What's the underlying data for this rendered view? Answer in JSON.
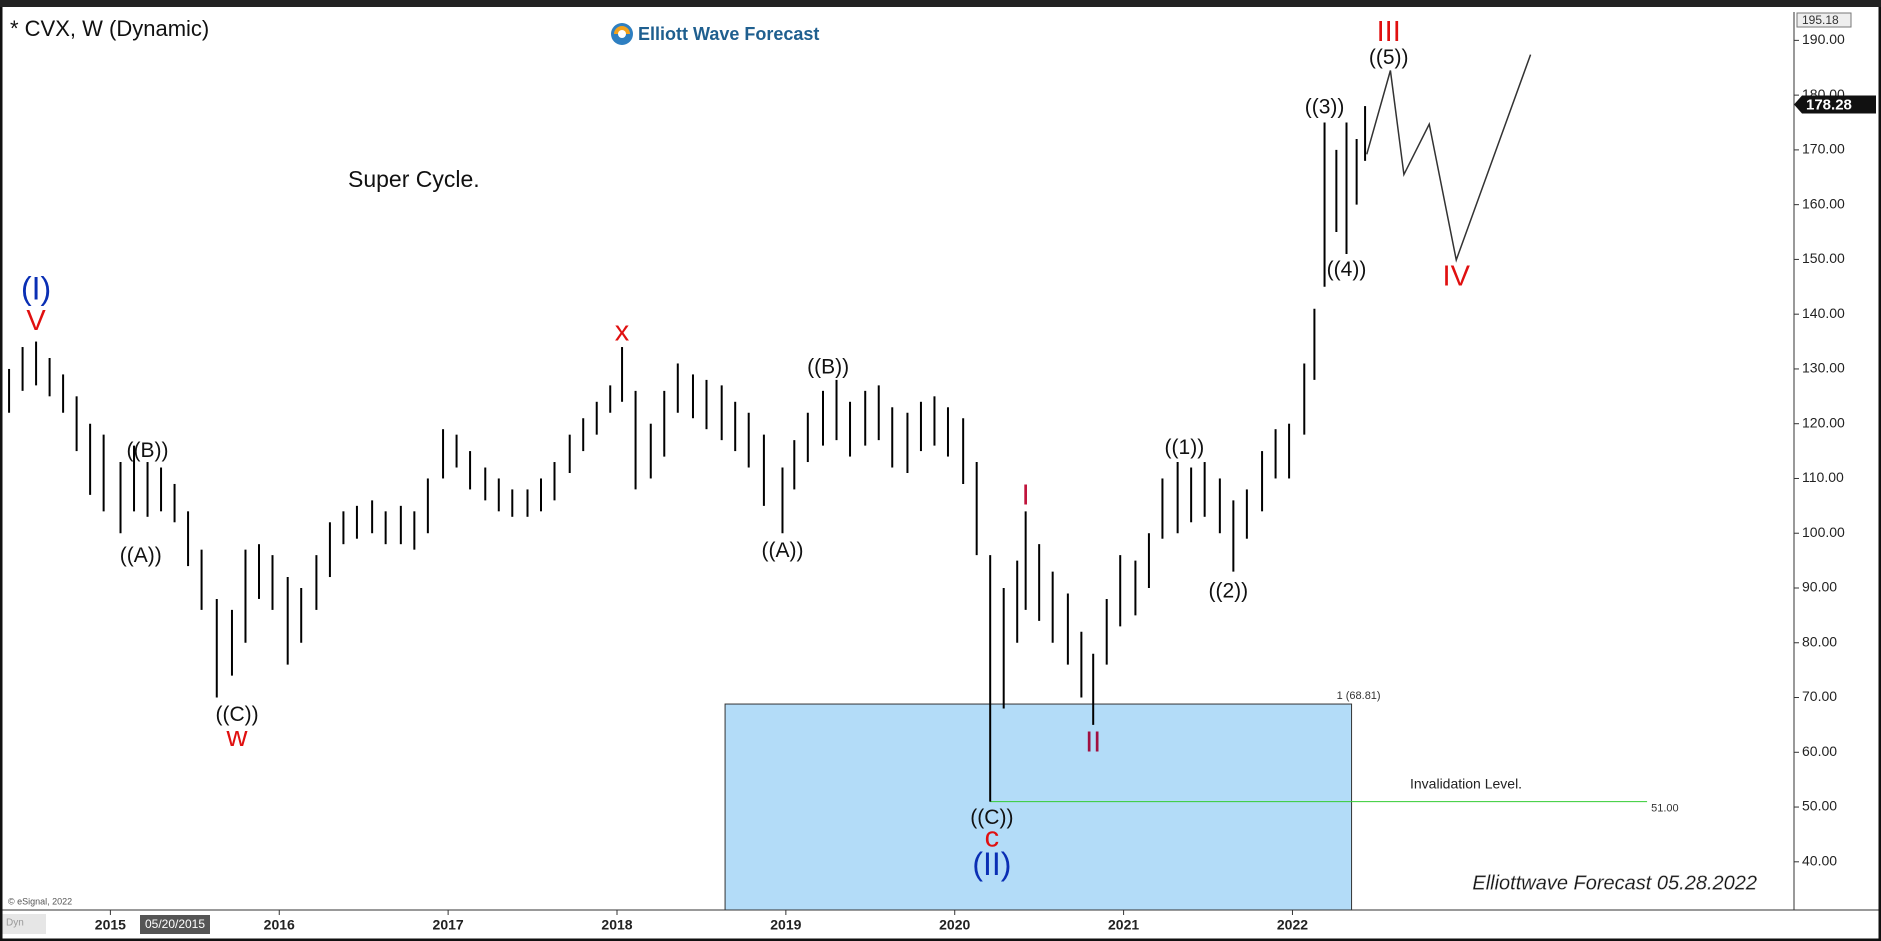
{
  "chart_data": {
    "type": "hilo",
    "title": "* CVX, W (Dynamic)",
    "logo": "Elliott Wave Forecast",
    "subtitle": "Super Cycle.",
    "footer": "Elliottwave Forecast 05.28.2022",
    "copyright": "© eSignal, 2022",
    "mode": "Dyn",
    "cursor_date": "05/20/2015",
    "bar_color": "#000000",
    "xlim": [
      2014.37,
      2024.97
    ],
    "xticks": [
      2015,
      2016,
      2017,
      2018,
      2019,
      2020,
      2021,
      2022
    ],
    "ylim": [
      31.2,
      195.18
    ],
    "yticks": [
      {
        "value": 40,
        "label": "40.00"
      },
      {
        "value": 50,
        "label": "50.00"
      },
      {
        "value": 60,
        "label": "60.00"
      },
      {
        "value": 70,
        "label": "70.00"
      },
      {
        "value": 80,
        "label": "80.00"
      },
      {
        "value": 90,
        "label": "90.00"
      },
      {
        "value": 100,
        "label": "100.00"
      },
      {
        "value": 110,
        "label": "110.00"
      },
      {
        "value": 120,
        "label": "120.00"
      },
      {
        "value": 130,
        "label": "130.00"
      },
      {
        "value": 140,
        "label": "140.00"
      },
      {
        "value": 150,
        "label": "150.00"
      },
      {
        "value": 160,
        "label": "160.00"
      },
      {
        "value": 170,
        "label": "170.00"
      },
      {
        "value": 180,
        "label": "180.00"
      },
      {
        "value": 190,
        "label": "190.00"
      }
    ],
    "last_price": 178.28,
    "x": [
      2014.4,
      2014.48,
      2014.56,
      2014.64,
      2014.72,
      2014.8,
      2014.88,
      2014.96,
      2015.06,
      2015.14,
      2015.22,
      2015.3,
      2015.38,
      2015.46,
      2015.54,
      2015.63,
      2015.72,
      2015.8,
      2015.88,
      2015.96,
      2016.05,
      2016.13,
      2016.22,
      2016.3,
      2016.38,
      2016.46,
      2016.55,
      2016.63,
      2016.72,
      2016.8,
      2016.88,
      2016.97,
      2017.05,
      2017.13,
      2017.22,
      2017.3,
      2017.38,
      2017.47,
      2017.55,
      2017.63,
      2017.72,
      2017.8,
      2017.88,
      2017.96,
      2018.03,
      2018.11,
      2018.2,
      2018.28,
      2018.36,
      2018.45,
      2018.53,
      2018.62,
      2018.7,
      2018.78,
      2018.87,
      2018.98,
      2019.05,
      2019.13,
      2019.22,
      2019.3,
      2019.38,
      2019.47,
      2019.55,
      2019.63,
      2019.72,
      2019.8,
      2019.88,
      2019.96,
      2020.05,
      2020.13,
      2020.21,
      2020.29,
      2020.37,
      2020.42,
      2020.5,
      2020.58,
      2020.67,
      2020.75,
      2020.82,
      2020.9,
      2020.98,
      2021.07,
      2021.15,
      2021.23,
      2021.32,
      2021.4,
      2021.48,
      2021.57,
      2021.65,
      2021.73,
      2021.82,
      2021.9,
      2021.98,
      2022.07,
      2022.13,
      2022.19,
      2022.26,
      2022.32,
      2022.38,
      2022.43
    ],
    "high": [
      130,
      134,
      135,
      132,
      129,
      125,
      120,
      118,
      113,
      116,
      113,
      112,
      109,
      104,
      97,
      88,
      86,
      97,
      98,
      96,
      92,
      90,
      96,
      102,
      104,
      105,
      106,
      104,
      105,
      104,
      110,
      119,
      118,
      115,
      112,
      110,
      108,
      108,
      110,
      113,
      118,
      121,
      124,
      127,
      134,
      126,
      120,
      126,
      131,
      129,
      128,
      127,
      124,
      122,
      118,
      112,
      117,
      122,
      126,
      128,
      124,
      126,
      127,
      123,
      122,
      124,
      125,
      123,
      121,
      113,
      96,
      90,
      95,
      104,
      98,
      93,
      89,
      82,
      78,
      88,
      96,
      95,
      100,
      110,
      113,
      112,
      113,
      110,
      106,
      108,
      115,
      119,
      120,
      131,
      141,
      175,
      170,
      175,
      172,
      178
    ],
    "low": [
      122,
      126,
      127,
      125,
      122,
      115,
      107,
      104,
      100,
      104,
      103,
      104,
      102,
      94,
      86,
      70,
      74,
      80,
      88,
      86,
      76,
      80,
      86,
      92,
      98,
      99,
      100,
      98,
      98,
      97,
      100,
      110,
      112,
      108,
      106,
      104,
      103,
      103,
      104,
      106,
      111,
      115,
      118,
      122,
      124,
      108,
      110,
      114,
      122,
      121,
      119,
      117,
      115,
      112,
      105,
      100,
      108,
      113,
      116,
      117,
      114,
      116,
      117,
      112,
      111,
      115,
      116,
      114,
      109,
      96,
      51,
      68,
      80,
      86,
      84,
      80,
      76,
      70,
      65,
      76,
      83,
      85,
      90,
      99,
      100,
      102,
      103,
      100,
      93,
      99,
      104,
      110,
      110,
      118,
      128,
      145,
      155,
      151,
      160,
      168
    ],
    "projection": {
      "color": "#333333",
      "x": [
        2022.44,
        2022.58,
        2022.66,
        2022.81,
        2022.97,
        2023.41
      ],
      "values": [
        169.2,
        184.5,
        165.5,
        174.7,
        149.9,
        187.4
      ]
    },
    "zone": {
      "color": "#b3dcf8",
      "x": [
        2018.64,
        2022.35
      ],
      "value": 68.81,
      "label": "1 (68.81)"
    },
    "invalidation": {
      "color": "#33cc33",
      "x": [
        2020.21,
        2024.1
      ],
      "value": 51,
      "label": "51.00",
      "text": "Invalidation Level."
    },
    "annotations": [
      {
        "text": "(I)",
        "x": 2014.56,
        "y": 144.2,
        "color": "#0a2fb4"
      },
      {
        "text": "V",
        "x": 2014.56,
        "y": 138.5,
        "color": "#e01010"
      },
      {
        "text": "((B))",
        "x": 2015.22,
        "y": 114.9,
        "color": "#111111"
      },
      {
        "text": "((A))",
        "x": 2015.18,
        "y": 95.8,
        "color": "#111111"
      },
      {
        "text": "((C))",
        "x": 2015.75,
        "y": 66.7,
        "color": "#111111"
      },
      {
        "text": "w",
        "x": 2015.75,
        "y": 62.5,
        "color": "#e01010"
      },
      {
        "text": "x",
        "x": 2018.03,
        "y": 136.6,
        "color": "#e01010"
      },
      {
        "text": "((B))",
        "x": 2019.25,
        "y": 130.2,
        "color": "#111111"
      },
      {
        "text": "((A))",
        "x": 2018.98,
        "y": 96.7,
        "color": "#111111"
      },
      {
        "text": "I",
        "x": 2020.42,
        "y": 106.6,
        "color": "#c0143c"
      },
      {
        "text": "II",
        "x": 2020.82,
        "y": 61.5,
        "color": "#a01040"
      },
      {
        "text": "((C))",
        "x": 2020.22,
        "y": 47.9,
        "color": "#111111"
      },
      {
        "text": "c",
        "x": 2020.22,
        "y": 44.2,
        "color": "#e01010"
      },
      {
        "text": "(II)",
        "x": 2020.22,
        "y": 39.1,
        "color": "#0a2fb4"
      },
      {
        "text": "((1))",
        "x": 2021.36,
        "y": 115.5,
        "color": "#111111"
      },
      {
        "text": "((2))",
        "x": 2021.62,
        "y": 89.3,
        "color": "#111111"
      },
      {
        "text": "((3))",
        "x": 2022.19,
        "y": 177.7,
        "color": "#111111"
      },
      {
        "text": "((4))",
        "x": 2022.32,
        "y": 148.0,
        "color": "#111111"
      },
      {
        "text": "((5))",
        "x": 2022.57,
        "y": 186.7,
        "color": "#111111"
      },
      {
        "text": "III",
        "x": 2022.57,
        "y": 191.3,
        "color": "#e01010"
      },
      {
        "text": "IV",
        "x": 2022.97,
        "y": 146.6,
        "color": "#e01010"
      }
    ]
  }
}
